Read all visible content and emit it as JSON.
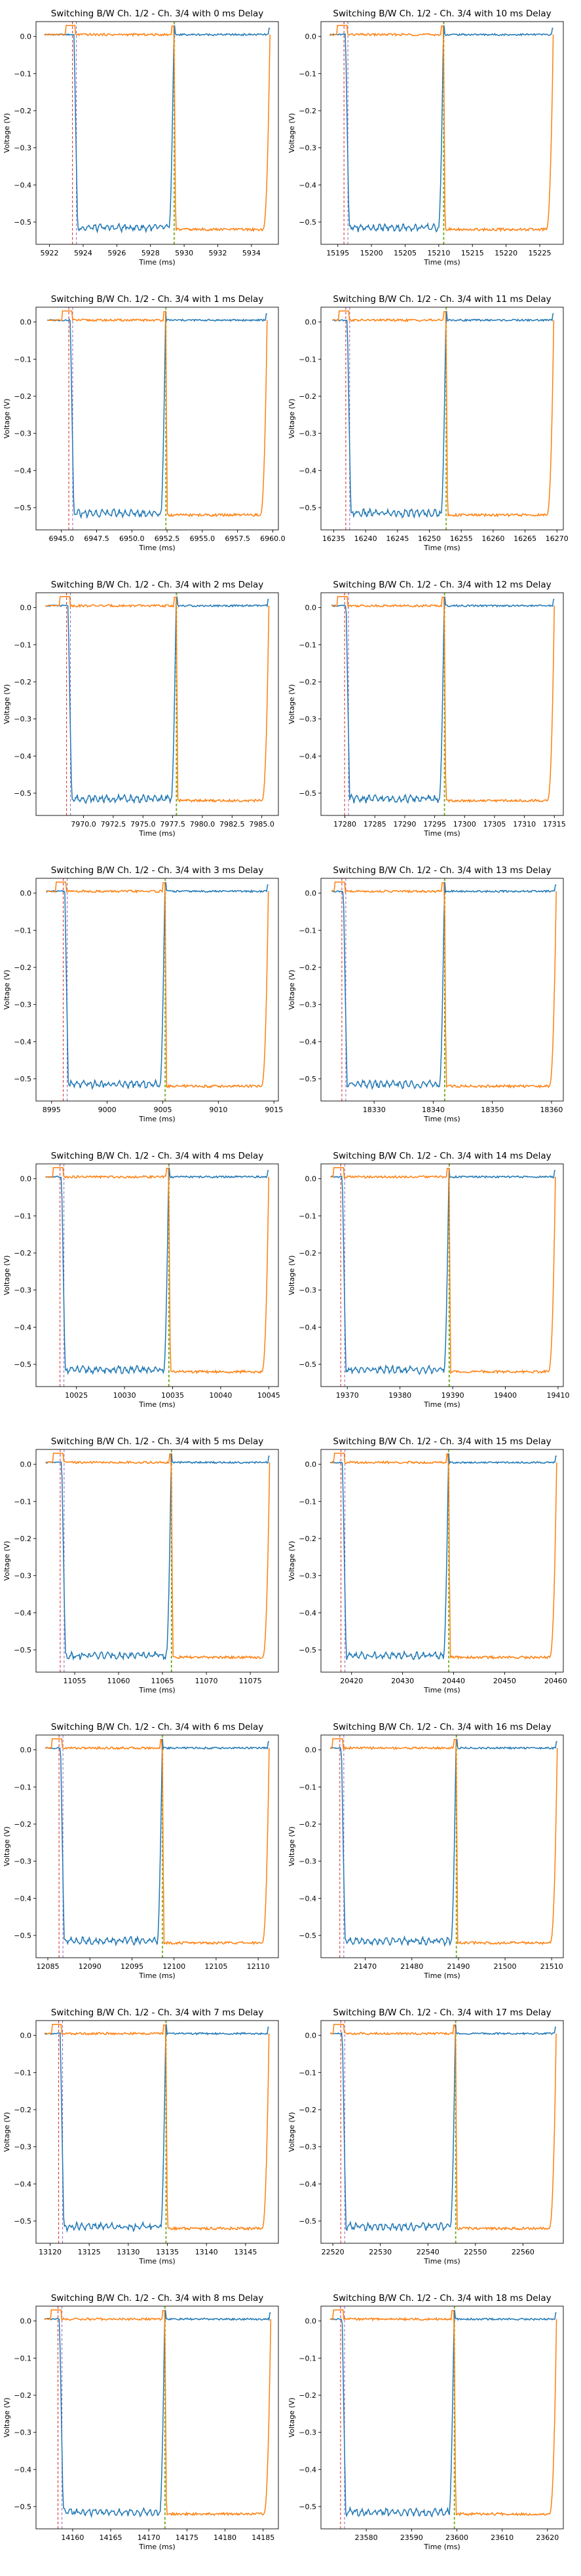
{
  "figure": {
    "xlabel": "Time (ms)",
    "ylabel": "Voltage (V)",
    "series_colors": [
      "#1f77b4",
      "#ff7f0e"
    ],
    "marker_colors": [
      "#d62728",
      "#9467bd",
      "#2ca02c",
      "#bcbd22"
    ]
  },
  "chart_data": [
    {
      "type": "line",
      "title": "Switching B/W Ch. 1/2 - Ch. 3/4 with 0 ms Delay",
      "xlabel": "Time (ms)",
      "ylabel": "Voltage (V)",
      "x_ticks": [
        5922,
        5924,
        5926,
        5928,
        5930,
        5932,
        5934
      ],
      "x_tick_labels": [
        "5922",
        "5924",
        "5926",
        "5928",
        "5930",
        "5932",
        "5934"
      ],
      "xlim": [
        5921.2,
        5935.6
      ],
      "ylim": [
        -0.56,
        0.04
      ],
      "y_ticks": [
        0.0,
        -0.1,
        -0.2,
        -0.3,
        -0.4,
        -0.5
      ],
      "y_tick_labels": [
        "0.0",
        "−0.1",
        "−0.2",
        "−0.3",
        "−0.4",
        "−0.5"
      ],
      "t_start": 5921.7,
      "t_fall": 5923.6,
      "t_switch": 5929.4,
      "t_end": 5935.1,
      "series": [
        {
          "name": "Ch. 1/2",
          "high": 0.005,
          "low": -0.515
        },
        {
          "name": "Ch. 3/4",
          "high": 0.005,
          "low": -0.52
        }
      ]
    },
    {
      "type": "line",
      "title": "Switching B/W Ch. 1/2 - Ch. 3/4 with 10 ms Delay",
      "xlabel": "Time (ms)",
      "ylabel": "Voltage (V)",
      "x_ticks": [
        15195,
        15200,
        15205,
        15210,
        15215,
        15220,
        15225
      ],
      "x_tick_labels": [
        "15195",
        "15200",
        "15205",
        "15210",
        "15215",
        "15220",
        "15225"
      ],
      "xlim": [
        15192.5,
        15228.5
      ],
      "ylim": [
        -0.56,
        0.04
      ],
      "y_ticks": [
        0.0,
        -0.1,
        -0.2,
        -0.3,
        -0.4,
        -0.5
      ],
      "y_tick_labels": [
        "0.0",
        "−0.1",
        "−0.2",
        "−0.3",
        "−0.4",
        "−0.5"
      ],
      "t_start": 15193.8,
      "t_fall": 15196.5,
      "t_switch": 15210.7,
      "t_end": 15227.0,
      "series": [
        {
          "name": "Ch. 1/2",
          "high": 0.005,
          "low": -0.515
        },
        {
          "name": "Ch. 3/4",
          "high": 0.005,
          "low": -0.52
        }
      ]
    },
    {
      "type": "line",
      "title": "Switching B/W Ch. 1/2 - Ch. 3/4 with 1 ms Delay",
      "xlabel": "Time (ms)",
      "ylabel": "Voltage (V)",
      "x_ticks": [
        6945.0,
        6947.5,
        6950.0,
        6952.5,
        6955.0,
        6957.5,
        6960.0
      ],
      "x_tick_labels": [
        "6945.0",
        "6947.5",
        "6950.0",
        "6952.5",
        "6955.0",
        "6957.5",
        "6960.0"
      ],
      "xlim": [
        6943.2,
        6960.4
      ],
      "ylim": [
        -0.56,
        0.04
      ],
      "y_ticks": [
        0.0,
        -0.1,
        -0.2,
        -0.3,
        -0.4,
        -0.5
      ],
      "y_tick_labels": [
        "0.0",
        "−0.1",
        "−0.2",
        "−0.3",
        "−0.4",
        "−0.5"
      ],
      "t_start": 6944.0,
      "t_fall": 6945.8,
      "t_switch": 6952.4,
      "t_end": 6959.6,
      "series": [
        {
          "name": "Ch. 1/2",
          "high": 0.005,
          "low": -0.515
        },
        {
          "name": "Ch. 3/4",
          "high": 0.005,
          "low": -0.52
        }
      ]
    },
    {
      "type": "line",
      "title": "Switching B/W Ch. 1/2 - Ch. 3/4 with 11 ms Delay",
      "xlabel": "Time (ms)",
      "ylabel": "Voltage (V)",
      "x_ticks": [
        16235,
        16240,
        16245,
        16250,
        16255,
        16260,
        16265,
        16270
      ],
      "x_tick_labels": [
        "16235",
        "16240",
        "16245",
        "16250",
        "16255",
        "16260",
        "16265",
        "16270"
      ],
      "xlim": [
        16233.0,
        16271.0
      ],
      "ylim": [
        -0.56,
        0.04
      ],
      "y_ticks": [
        0.0,
        -0.1,
        -0.2,
        -0.3,
        -0.4,
        -0.5
      ],
      "y_tick_labels": [
        "0.0",
        "−0.1",
        "−0.2",
        "−0.3",
        "−0.4",
        "−0.5"
      ],
      "t_start": 16234.8,
      "t_fall": 16237.5,
      "t_switch": 16252.6,
      "t_end": 16269.5,
      "series": [
        {
          "name": "Ch. 1/2",
          "high": 0.005,
          "low": -0.515
        },
        {
          "name": "Ch. 3/4",
          "high": 0.005,
          "low": -0.52
        }
      ]
    },
    {
      "type": "line",
      "title": "Switching B/W Ch. 1/2 - Ch. 3/4 with 2 ms Delay",
      "xlabel": "Time (ms)",
      "ylabel": "Voltage (V)",
      "x_ticks": [
        7970.0,
        7972.5,
        7975.0,
        7977.5,
        7980.0,
        7982.5,
        7985.0
      ],
      "x_tick_labels": [
        "7970.0",
        "7972.5",
        "7975.0",
        "7977.5",
        "7980.0",
        "7982.5",
        "7985.0"
      ],
      "xlim": [
        7966.0,
        7986.4
      ],
      "ylim": [
        -0.56,
        0.04
      ],
      "y_ticks": [
        0.0,
        -0.1,
        -0.2,
        -0.3,
        -0.4,
        -0.5
      ],
      "y_tick_labels": [
        "0.0",
        "−0.1",
        "−0.2",
        "−0.3",
        "−0.4",
        "−0.5"
      ],
      "t_start": 7966.8,
      "t_fall": 7968.9,
      "t_switch": 7977.8,
      "t_end": 7985.6,
      "series": [
        {
          "name": "Ch. 1/2",
          "high": 0.005,
          "low": -0.515
        },
        {
          "name": "Ch. 3/4",
          "high": 0.005,
          "low": -0.52
        }
      ]
    },
    {
      "type": "line",
      "title": "Switching B/W Ch. 1/2 - Ch. 3/4 with 12 ms Delay",
      "xlabel": "Time (ms)",
      "ylabel": "Voltage (V)",
      "x_ticks": [
        17280,
        17285,
        17290,
        17295,
        17300,
        17305,
        17310,
        17315
      ],
      "x_tick_labels": [
        "17280",
        "17285",
        "17290",
        "17295",
        "17300",
        "17305",
        "17310",
        "17315"
      ],
      "xlim": [
        17276.0,
        17316.5
      ],
      "ylim": [
        -0.56,
        0.04
      ],
      "y_ticks": [
        0.0,
        -0.1,
        -0.2,
        -0.3,
        -0.4,
        -0.5
      ],
      "y_tick_labels": [
        "0.0",
        "−0.1",
        "−0.2",
        "−0.3",
        "−0.4",
        "−0.5"
      ],
      "t_start": 17277.8,
      "t_fall": 17280.6,
      "t_switch": 17296.6,
      "t_end": 17315.0,
      "series": [
        {
          "name": "Ch. 1/2",
          "high": 0.005,
          "low": -0.515
        },
        {
          "name": "Ch. 3/4",
          "high": 0.005,
          "low": -0.52
        }
      ]
    },
    {
      "type": "line",
      "title": "Switching B/W Ch. 1/2 - Ch. 3/4 with 3 ms Delay",
      "xlabel": "Time (ms)",
      "ylabel": "Voltage (V)",
      "x_ticks": [
        8995,
        9000,
        9005,
        9010,
        9015
      ],
      "x_tick_labels": [
        "8995",
        "9000",
        "9005",
        "9010",
        "9015"
      ],
      "xlim": [
        8993.6,
        9015.4
      ],
      "ylim": [
        -0.56,
        0.04
      ],
      "y_ticks": [
        0.0,
        -0.1,
        -0.2,
        -0.3,
        -0.4,
        -0.5
      ],
      "y_tick_labels": [
        "0.0",
        "−0.1",
        "−0.2",
        "−0.3",
        "−0.4",
        "−0.5"
      ],
      "t_start": 8994.5,
      "t_fall": 8996.4,
      "t_switch": 9005.2,
      "t_end": 9014.5,
      "series": [
        {
          "name": "Ch. 1/2",
          "high": 0.005,
          "low": -0.515
        },
        {
          "name": "Ch. 3/4",
          "high": 0.005,
          "low": -0.52
        }
      ]
    },
    {
      "type": "line",
      "title": "Switching B/W Ch. 1/2 - Ch. 3/4 with 13 ms Delay",
      "xlabel": "Time (ms)",
      "ylabel": "Voltage (V)",
      "x_ticks": [
        18330,
        18340,
        18350,
        18360
      ],
      "x_tick_labels": [
        "18330",
        "18340",
        "18350",
        "18360"
      ],
      "xlim": [
        18321.0,
        18362.0
      ],
      "ylim": [
        -0.56,
        0.04
      ],
      "y_ticks": [
        0.0,
        -0.1,
        -0.2,
        -0.3,
        -0.4,
        -0.5
      ],
      "y_tick_labels": [
        "0.0",
        "−0.1",
        "−0.2",
        "−0.3",
        "−0.4",
        "−0.5"
      ],
      "t_start": 18322.8,
      "t_fall": 18325.2,
      "t_switch": 18341.9,
      "t_end": 18360.8,
      "series": [
        {
          "name": "Ch. 1/2",
          "high": 0.005,
          "low": -0.515
        },
        {
          "name": "Ch. 3/4",
          "high": 0.005,
          "low": -0.52
        }
      ]
    },
    {
      "type": "line",
      "title": "Switching B/W Ch. 1/2 - Ch. 3/4 with 4 ms Delay",
      "xlabel": "Time (ms)",
      "ylabel": "Voltage (V)",
      "x_ticks": [
        10025,
        10030,
        10035,
        10040,
        10045
      ],
      "x_tick_labels": [
        "10025",
        "10030",
        "10035",
        "10040",
        "10045"
      ],
      "xlim": [
        10020.8,
        10046.0
      ],
      "ylim": [
        -0.56,
        0.04
      ],
      "y_ticks": [
        0.0,
        -0.1,
        -0.2,
        -0.3,
        -0.4,
        -0.5
      ],
      "y_tick_labels": [
        "0.0",
        "−0.1",
        "−0.2",
        "−0.3",
        "−0.4",
        "−0.5"
      ],
      "t_start": 10021.8,
      "t_fall": 10023.7,
      "t_switch": 10034.6,
      "t_end": 10045.0,
      "series": [
        {
          "name": "Ch. 1/2",
          "high": 0.005,
          "low": -0.515
        },
        {
          "name": "Ch. 3/4",
          "high": 0.005,
          "low": -0.52
        }
      ]
    },
    {
      "type": "line",
      "title": "Switching B/W Ch. 1/2 - Ch. 3/4 with 14 ms Delay",
      "xlabel": "Time (ms)",
      "ylabel": "Voltage (V)",
      "x_ticks": [
        19370,
        19380,
        19390,
        19400,
        19410
      ],
      "x_tick_labels": [
        "19370",
        "19380",
        "19390",
        "19400",
        "19410"
      ],
      "xlim": [
        19365.0,
        19411.0
      ],
      "ylim": [
        -0.56,
        0.04
      ],
      "y_ticks": [
        0.0,
        -0.1,
        -0.2,
        -0.3,
        -0.4,
        -0.5
      ],
      "y_tick_labels": [
        "0.0",
        "−0.1",
        "−0.2",
        "−0.3",
        "−0.4",
        "−0.5"
      ],
      "t_start": 19366.8,
      "t_fall": 19369.5,
      "t_switch": 19389.3,
      "t_end": 19409.5,
      "series": [
        {
          "name": "Ch. 1/2",
          "high": 0.005,
          "low": -0.515
        },
        {
          "name": "Ch. 3/4",
          "high": 0.005,
          "low": -0.52
        }
      ]
    },
    {
      "type": "line",
      "title": "Switching B/W Ch. 1/2 - Ch. 3/4 with 5 ms Delay",
      "xlabel": "Time (ms)",
      "ylabel": "Voltage (V)",
      "x_ticks": [
        11055,
        11060,
        11065,
        11070,
        11075
      ],
      "x_tick_labels": [
        "11055",
        "11060",
        "11065",
        "11070",
        "11075"
      ],
      "xlim": [
        11050.6,
        11078.2
      ],
      "ylim": [
        -0.56,
        0.04
      ],
      "y_ticks": [
        0.0,
        -0.1,
        -0.2,
        -0.3,
        -0.4,
        -0.5
      ],
      "y_tick_labels": [
        "0.0",
        "−0.1",
        "−0.2",
        "−0.3",
        "−0.4",
        "−0.5"
      ],
      "t_start": 11051.7,
      "t_fall": 11053.8,
      "t_switch": 11066.0,
      "t_end": 11077.2,
      "series": [
        {
          "name": "Ch. 1/2",
          "high": 0.005,
          "low": -0.515
        },
        {
          "name": "Ch. 3/4",
          "high": 0.005,
          "low": -0.52
        }
      ]
    },
    {
      "type": "line",
      "title": "Switching B/W Ch. 1/2 - Ch. 3/4 with 15 ms Delay",
      "xlabel": "Time (ms)",
      "ylabel": "Voltage (V)",
      "x_ticks": [
        20420,
        20430,
        20440,
        20450,
        20460
      ],
      "x_tick_labels": [
        "20420",
        "20430",
        "20440",
        "20450",
        "20460"
      ],
      "xlim": [
        20414.0,
        20461.5
      ],
      "ylim": [
        -0.56,
        0.04
      ],
      "y_ticks": [
        0.0,
        -0.1,
        -0.2,
        -0.3,
        -0.4,
        -0.5
      ],
      "y_tick_labels": [
        "0.0",
        "−0.1",
        "−0.2",
        "−0.3",
        "−0.4",
        "−0.5"
      ],
      "t_start": 20415.8,
      "t_fall": 20418.7,
      "t_switch": 20439.0,
      "t_end": 20460.2,
      "series": [
        {
          "name": "Ch. 1/2",
          "high": 0.005,
          "low": -0.515
        },
        {
          "name": "Ch. 3/4",
          "high": 0.005,
          "low": -0.52
        }
      ]
    },
    {
      "type": "line",
      "title": "Switching B/W Ch. 1/2 - Ch. 3/4 with 6 ms Delay",
      "xlabel": "Time (ms)",
      "ylabel": "Voltage (V)",
      "x_ticks": [
        12085,
        12090,
        12095,
        12100,
        12105,
        12110
      ],
      "x_tick_labels": [
        "12085",
        "12090",
        "12095",
        "12100",
        "12105",
        "12110"
      ],
      "xlim": [
        12083.6,
        12112.4
      ],
      "ylim": [
        -0.56,
        0.04
      ],
      "y_ticks": [
        0.0,
        -0.1,
        -0.2,
        -0.3,
        -0.4,
        -0.5
      ],
      "y_tick_labels": [
        "0.0",
        "−0.1",
        "−0.2",
        "−0.3",
        "−0.4",
        "−0.5"
      ],
      "t_start": 12084.7,
      "t_fall": 12086.8,
      "t_switch": 12098.6,
      "t_end": 12111.3,
      "series": [
        {
          "name": "Ch. 1/2",
          "high": 0.005,
          "low": -0.515
        },
        {
          "name": "Ch. 3/4",
          "high": 0.005,
          "low": -0.52
        }
      ]
    },
    {
      "type": "line",
      "title": "Switching B/W Ch. 1/2 - Ch. 3/4 with 16 ms Delay",
      "xlabel": "Time (ms)",
      "ylabel": "Voltage (V)",
      "x_ticks": [
        21470,
        21480,
        21490,
        21500,
        21510
      ],
      "x_tick_labels": [
        "21470",
        "21480",
        "21490",
        "21500",
        "21510"
      ],
      "xlim": [
        21460.5,
        21512.5
      ],
      "ylim": [
        -0.56,
        0.04
      ],
      "y_ticks": [
        0.0,
        -0.1,
        -0.2,
        -0.3,
        -0.4,
        -0.5
      ],
      "y_tick_labels": [
        "0.0",
        "−0.1",
        "−0.2",
        "−0.3",
        "−0.4",
        "−0.5"
      ],
      "t_start": 21462.5,
      "t_fall": 21465.4,
      "t_switch": 21489.5,
      "t_end": 21511.2,
      "series": [
        {
          "name": "Ch. 1/2",
          "high": 0.005,
          "low": -0.515
        },
        {
          "name": "Ch. 3/4",
          "high": 0.005,
          "low": -0.52
        }
      ]
    },
    {
      "type": "line",
      "title": "Switching B/W Ch. 1/2 - Ch. 3/4 with 7 ms Delay",
      "xlabel": "Time (ms)",
      "ylabel": "Voltage (V)",
      "x_ticks": [
        13120,
        13125,
        13130,
        13135,
        13140,
        13145
      ],
      "x_tick_labels": [
        "13120",
        "13125",
        "13130",
        "13135",
        "13140",
        "13145"
      ],
      "xlim": [
        13118.2,
        13149.2
      ],
      "ylim": [
        -0.56,
        0.04
      ],
      "y_ticks": [
        0.0,
        -0.1,
        -0.2,
        -0.3,
        -0.4,
        -0.5
      ],
      "y_tick_labels": [
        "0.0",
        "−0.1",
        "−0.2",
        "−0.3",
        "−0.4",
        "−0.5"
      ],
      "t_start": 13119.3,
      "t_fall": 13121.6,
      "t_switch": 13134.8,
      "t_end": 13148.0,
      "series": [
        {
          "name": "Ch. 1/2",
          "high": 0.005,
          "low": -0.515
        },
        {
          "name": "Ch. 3/4",
          "high": 0.005,
          "low": -0.52
        }
      ]
    },
    {
      "type": "line",
      "title": "Switching B/W Ch. 1/2 - Ch. 3/4 with 17 ms Delay",
      "xlabel": "Time (ms)",
      "ylabel": "Voltage (V)",
      "x_ticks": [
        22520,
        22530,
        22540,
        22550,
        22560
      ],
      "x_tick_labels": [
        "22520",
        "22530",
        "22540",
        "22550",
        "22560"
      ],
      "xlim": [
        22517.5,
        22568.5
      ],
      "ylim": [
        -0.56,
        0.04
      ],
      "y_ticks": [
        0.0,
        -0.1,
        -0.2,
        -0.3,
        -0.4,
        -0.5
      ],
      "y_tick_labels": [
        "0.0",
        "−0.1",
        "−0.2",
        "−0.3",
        "−0.4",
        "−0.5"
      ],
      "t_start": 22519.5,
      "t_fall": 22522.5,
      "t_switch": 22545.8,
      "t_end": 22567.0,
      "series": [
        {
          "name": "Ch. 1/2",
          "high": 0.005,
          "low": -0.515
        },
        {
          "name": "Ch. 3/4",
          "high": 0.005,
          "low": -0.52
        }
      ]
    },
    {
      "type": "line",
      "title": "Switching B/W Ch. 1/2 - Ch. 3/4 with 8 ms Delay",
      "xlabel": "Time (ms)",
      "ylabel": "Voltage (V)",
      "x_ticks": [
        14160,
        14165,
        14170,
        14175,
        14180,
        14185
      ],
      "x_tick_labels": [
        "14160",
        "14165",
        "14170",
        "14175",
        "14180",
        "14185"
      ],
      "xlim": [
        14155.2,
        14187.0
      ],
      "ylim": [
        -0.56,
        0.04
      ],
      "y_ticks": [
        0.0,
        -0.1,
        -0.2,
        -0.3,
        -0.4,
        -0.5
      ],
      "y_tick_labels": [
        "0.0",
        "−0.1",
        "−0.2",
        "−0.3",
        "−0.4",
        "−0.5"
      ],
      "t_start": 14156.3,
      "t_fall": 14158.6,
      "t_switch": 14172.1,
      "t_end": 14186.0,
      "series": [
        {
          "name": "Ch. 1/2",
          "high": 0.005,
          "low": -0.515
        },
        {
          "name": "Ch. 3/4",
          "high": 0.005,
          "low": -0.52
        }
      ]
    },
    {
      "type": "line",
      "title": "Switching B/W Ch. 1/2 - Ch. 3/4 with 18 ms Delay",
      "xlabel": "Time (ms)",
      "ylabel": "Voltage (V)",
      "x_ticks": [
        23580,
        23590,
        23600,
        23610,
        23620
      ],
      "x_tick_labels": [
        "23580",
        "23590",
        "23600",
        "23610",
        "23620"
      ],
      "xlim": [
        23570.0,
        23623.5
      ],
      "ylim": [
        -0.56,
        0.04
      ],
      "y_ticks": [
        0.0,
        -0.1,
        -0.2,
        -0.3,
        -0.4,
        -0.5
      ],
      "y_tick_labels": [
        "0.0",
        "−0.1",
        "−0.2",
        "−0.3",
        "−0.4",
        "−0.5"
      ],
      "t_start": 23572.0,
      "t_fall": 23575.2,
      "t_switch": 23599.4,
      "t_end": 23622.0,
      "series": [
        {
          "name": "Ch. 1/2",
          "high": 0.005,
          "low": -0.515
        },
        {
          "name": "Ch. 3/4",
          "high": 0.005,
          "low": -0.52
        }
      ]
    }
  ]
}
